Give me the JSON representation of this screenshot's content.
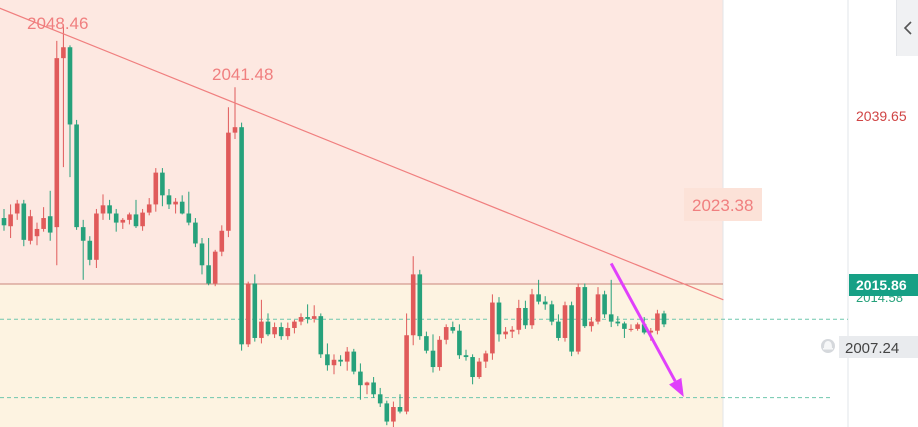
{
  "colors": {
    "up": "#e05a5a",
    "down": "#26a17b",
    "trendline": "#f07f7f",
    "resistance_zone": "#fde8e1",
    "support_zone": "#fdf3e1",
    "arrow": "#e040fb",
    "current_price_badge": "#16a085",
    "dashed_level": "#6fc7ad"
  },
  "icons": {
    "collapse": "chevron-left-icon",
    "alert": "bell-icon"
  },
  "chart_data": {
    "type": "candlestick",
    "ylim": [
      2004,
      2051
    ],
    "annotations": {
      "high_1": "2048.46",
      "high_2": "2041.48",
      "trendline_touch": "2023.38"
    },
    "axis_labels": {
      "level_upper": "2039.65",
      "current_price": "2015.86",
      "partial_hidden": "2014.58",
      "alert_level": "2007.24"
    },
    "levels": {
      "current": 2015.86,
      "alert": 2007.24
    },
    "trendline": {
      "from": {
        "index": -1,
        "price": 2050.2
      },
      "to": {
        "index": 109,
        "price": 2018.0
      }
    },
    "projection_arrow": {
      "from": {
        "index": 92,
        "price": 2022.0
      },
      "to": {
        "index": 103,
        "price": 2007.3
      }
    },
    "candles": [
      [
        2027.0,
        2028.0,
        2025.6,
        2026.2
      ],
      [
        2026.1,
        2028.5,
        2024.8,
        2027.4
      ],
      [
        2027.5,
        2029.0,
        2026.8,
        2028.6
      ],
      [
        2028.6,
        2029.0,
        2023.9,
        2024.6
      ],
      [
        2024.5,
        2027.9,
        2024.1,
        2027.2
      ],
      [
        2025.0,
        2026.5,
        2024.0,
        2025.8
      ],
      [
        2025.8,
        2028.2,
        2025.5,
        2027.0
      ],
      [
        2027.2,
        2030.0,
        2024.5,
        2025.4
      ],
      [
        2026.0,
        2046.5,
        2021.8,
        2044.6
      ],
      [
        2044.6,
        2048.3,
        2032.6,
        2045.8
      ],
      [
        2045.8,
        2046.0,
        2031.5,
        2037.3
      ],
      [
        2037.3,
        2037.8,
        2025.7,
        2026.0
      ],
      [
        2026.0,
        2026.8,
        2020.2,
        2024.5
      ],
      [
        2024.5,
        2025.0,
        2021.8,
        2022.4
      ],
      [
        2022.4,
        2028.0,
        2021.5,
        2027.5
      ],
      [
        2027.5,
        2029.6,
        2026.8,
        2028.4
      ],
      [
        2028.4,
        2029.0,
        2026.8,
        2027.5
      ],
      [
        2027.5,
        2028.0,
        2025.5,
        2026.5
      ],
      [
        2026.5,
        2027.0,
        2025.8,
        2026.8
      ],
      [
        2026.8,
        2027.6,
        2026.3,
        2027.4
      ],
      [
        2027.4,
        2029.0,
        2025.9,
        2026.1
      ],
      [
        2026.1,
        2028.0,
        2025.6,
        2027.6
      ],
      [
        2027.6,
        2029.2,
        2027.3,
        2028.5
      ],
      [
        2028.5,
        2032.5,
        2027.7,
        2032.0
      ],
      [
        2032.0,
        2032.5,
        2028.3,
        2029.5
      ],
      [
        2029.5,
        2030.2,
        2028.0,
        2028.5
      ],
      [
        2028.5,
        2029.2,
        2027.5,
        2028.8
      ],
      [
        2028.8,
        2029.5,
        2027.4,
        2027.5
      ],
      [
        2027.5,
        2029.9,
        2026.2,
        2026.5
      ],
      [
        2026.5,
        2027.0,
        2023.8,
        2024.2
      ],
      [
        2024.2,
        2024.8,
        2020.8,
        2021.8
      ],
      [
        2021.8,
        2024.8,
        2019.6,
        2019.8
      ],
      [
        2019.8,
        2023.5,
        2019.5,
        2023.3
      ],
      [
        2023.3,
        2026.2,
        2022.8,
        2025.6
      ],
      [
        2025.6,
        2039.2,
        2024.9,
        2036.4
      ],
      [
        2036.4,
        2041.4,
        2035.7,
        2037.0
      ],
      [
        2037.0,
        2037.5,
        2012.4,
        2013.1
      ],
      [
        2013.1,
        2020.0,
        2012.8,
        2019.8
      ],
      [
        2019.8,
        2020.8,
        2013.4,
        2013.8
      ],
      [
        2013.8,
        2018.0,
        2013.2,
        2015.6
      ],
      [
        2015.6,
        2016.5,
        2014.0,
        2014.2
      ],
      [
        2014.2,
        2015.5,
        2013.8,
        2015.0
      ],
      [
        2015.0,
        2015.5,
        2013.6,
        2014.0
      ],
      [
        2014.0,
        2015.5,
        2013.6,
        2014.9
      ],
      [
        2014.9,
        2015.8,
        2014.3,
        2015.6
      ],
      [
        2015.6,
        2016.5,
        2015.2,
        2016.1
      ],
      [
        2016.1,
        2017.5,
        2015.4,
        2015.9
      ],
      [
        2015.9,
        2017.4,
        2015.5,
        2016.2
      ],
      [
        2016.2,
        2016.5,
        2011.6,
        2012.0
      ],
      [
        2012.0,
        2013.2,
        2010.2,
        2010.8
      ],
      [
        2010.8,
        2012.0,
        2009.8,
        2011.4
      ],
      [
        2011.4,
        2011.9,
        2010.7,
        2011.2
      ],
      [
        2011.2,
        2012.8,
        2010.2,
        2012.3
      ],
      [
        2012.3,
        2012.6,
        2009.8,
        2010.1
      ],
      [
        2010.1,
        2011.0,
        2007.0,
        2008.6
      ],
      [
        2008.6,
        2009.0,
        2007.6,
        2008.9
      ],
      [
        2008.9,
        2009.5,
        2007.2,
        2007.6
      ],
      [
        2007.6,
        2008.3,
        2006.2,
        2006.6
      ],
      [
        2006.6,
        2006.9,
        2004.2,
        2004.6
      ],
      [
        2004.6,
        2006.8,
        2004.0,
        2006.2
      ],
      [
        2006.2,
        2007.6,
        2005.5,
        2005.7
      ],
      [
        2005.7,
        2016.5,
        2005.4,
        2014.1
      ],
      [
        2014.1,
        2022.8,
        2013.0,
        2020.8
      ],
      [
        2020.8,
        2021.3,
        2013.6,
        2014.0
      ],
      [
        2014.0,
        2014.5,
        2012.1,
        2012.4
      ],
      [
        2012.4,
        2014.2,
        2010.0,
        2010.6
      ],
      [
        2010.6,
        2014.0,
        2010.2,
        2013.6
      ],
      [
        2013.6,
        2015.3,
        2013.1,
        2015.0
      ],
      [
        2015.0,
        2015.6,
        2014.3,
        2014.6
      ],
      [
        2014.6,
        2015.3,
        2011.5,
        2011.9
      ],
      [
        2011.9,
        2012.5,
        2011.3,
        2011.7
      ],
      [
        2011.7,
        2012.0,
        2008.7,
        2009.5
      ],
      [
        2009.5,
        2011.6,
        2009.3,
        2011.2
      ],
      [
        2011.2,
        2012.4,
        2010.5,
        2012.1
      ],
      [
        2012.1,
        2018.6,
        2011.4,
        2017.7
      ],
      [
        2017.7,
        2018.3,
        2013.4,
        2014.2
      ],
      [
        2014.2,
        2015.0,
        2013.7,
        2014.5
      ],
      [
        2014.5,
        2015.1,
        2013.8,
        2014.7
      ],
      [
        2014.7,
        2018.0,
        2014.2,
        2017.1
      ],
      [
        2017.1,
        2017.9,
        2014.8,
        2015.2
      ],
      [
        2015.2,
        2019.2,
        2014.8,
        2018.6
      ],
      [
        2018.6,
        2020.2,
        2017.5,
        2017.8
      ],
      [
        2017.8,
        2018.4,
        2016.9,
        2017.5
      ],
      [
        2017.5,
        2017.9,
        2015.2,
        2015.6
      ],
      [
        2015.6,
        2016.4,
        2013.5,
        2013.8
      ],
      [
        2013.8,
        2017.8,
        2013.4,
        2017.4
      ],
      [
        2017.4,
        2017.8,
        2011.8,
        2012.3
      ],
      [
        2012.3,
        2019.8,
        2012.0,
        2019.4
      ],
      [
        2019.4,
        2019.8,
        2014.9,
        2015.1
      ],
      [
        2015.1,
        2016.1,
        2014.5,
        2015.6
      ],
      [
        2015.6,
        2019.4,
        2015.3,
        2018.6
      ],
      [
        2018.6,
        2019.0,
        2016.0,
        2016.4
      ],
      [
        2016.4,
        2020.2,
        2015.0,
        2015.6
      ],
      [
        2015.6,
        2016.2,
        2015.1,
        2015.4
      ],
      [
        2015.4,
        2015.6,
        2013.8,
        2014.8
      ],
      [
        2014.8,
        2015.3,
        2014.5,
        2014.8
      ],
      [
        2014.8,
        2015.5,
        2014.6,
        2015.3
      ],
      [
        2015.3,
        2016.1,
        2014.2,
        2014.4
      ],
      [
        2014.4,
        2014.9,
        2013.5,
        2014.6
      ],
      [
        2014.6,
        2016.9,
        2014.2,
        2016.5
      ],
      [
        2016.5,
        2016.8,
        2015.0,
        2015.3
      ]
    ]
  }
}
